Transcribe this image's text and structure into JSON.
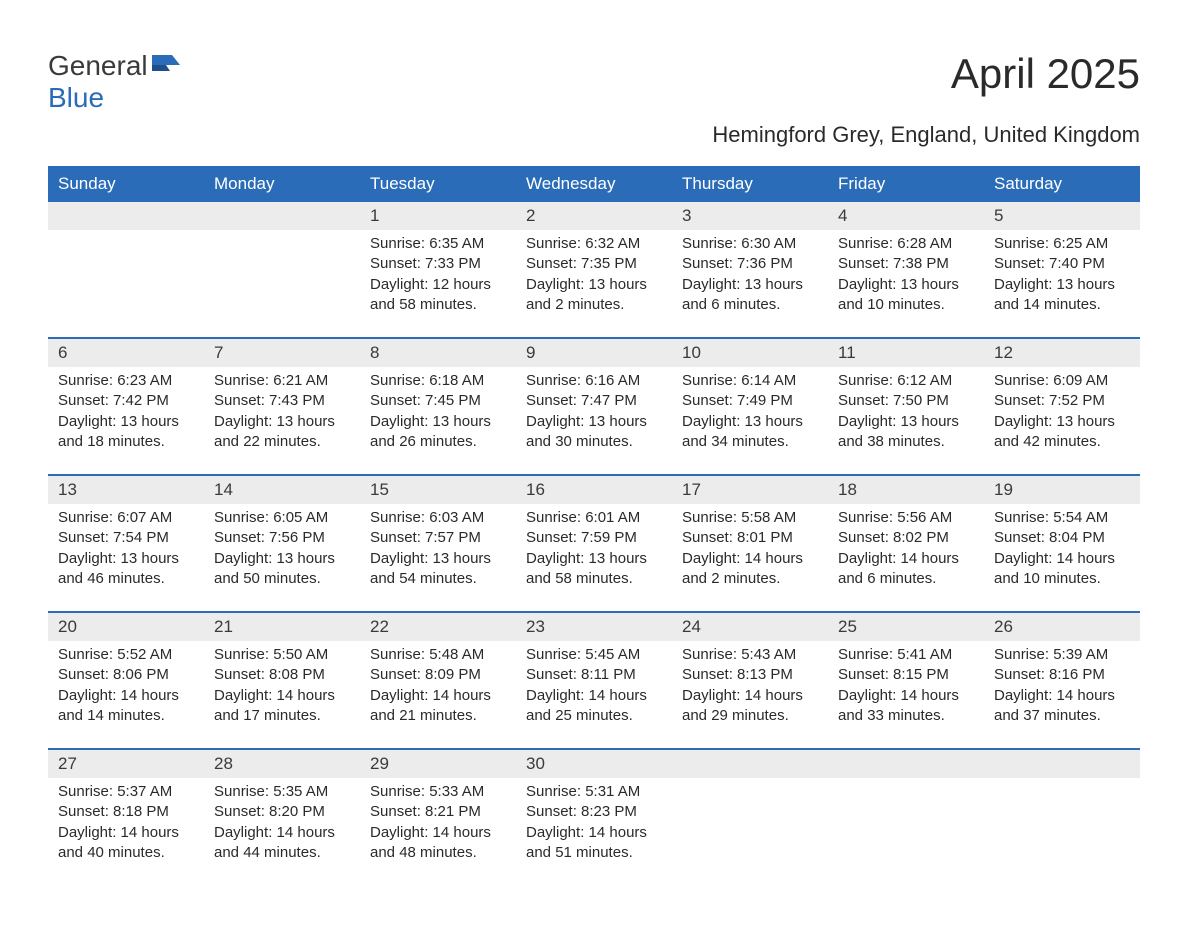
{
  "logo": {
    "text1": "General",
    "text2": "Blue",
    "icon_color": "#2b6cb8",
    "text1_color": "#3a3a3a"
  },
  "title": "April 2025",
  "subtitle": "Hemingford Grey, England, United Kingdom",
  "colors": {
    "header_bg": "#2b6cb8",
    "header_text": "#ffffff",
    "date_row_bg": "#ececec",
    "week_border": "#2b6cb8",
    "body_text": "#2a2a2a"
  },
  "weekdays": [
    "Sunday",
    "Monday",
    "Tuesday",
    "Wednesday",
    "Thursday",
    "Friday",
    "Saturday"
  ],
  "weeks": [
    {
      "dates": [
        "",
        "",
        "1",
        "2",
        "3",
        "4",
        "5"
      ],
      "info": [
        null,
        null,
        {
          "sunrise": "Sunrise: 6:35 AM",
          "sunset": "Sunset: 7:33 PM",
          "daylight1": "Daylight: 12 hours",
          "daylight2": "and 58 minutes."
        },
        {
          "sunrise": "Sunrise: 6:32 AM",
          "sunset": "Sunset: 7:35 PM",
          "daylight1": "Daylight: 13 hours",
          "daylight2": "and 2 minutes."
        },
        {
          "sunrise": "Sunrise: 6:30 AM",
          "sunset": "Sunset: 7:36 PM",
          "daylight1": "Daylight: 13 hours",
          "daylight2": "and 6 minutes."
        },
        {
          "sunrise": "Sunrise: 6:28 AM",
          "sunset": "Sunset: 7:38 PM",
          "daylight1": "Daylight: 13 hours",
          "daylight2": "and 10 minutes."
        },
        {
          "sunrise": "Sunrise: 6:25 AM",
          "sunset": "Sunset: 7:40 PM",
          "daylight1": "Daylight: 13 hours",
          "daylight2": "and 14 minutes."
        }
      ]
    },
    {
      "dates": [
        "6",
        "7",
        "8",
        "9",
        "10",
        "11",
        "12"
      ],
      "info": [
        {
          "sunrise": "Sunrise: 6:23 AM",
          "sunset": "Sunset: 7:42 PM",
          "daylight1": "Daylight: 13 hours",
          "daylight2": "and 18 minutes."
        },
        {
          "sunrise": "Sunrise: 6:21 AM",
          "sunset": "Sunset: 7:43 PM",
          "daylight1": "Daylight: 13 hours",
          "daylight2": "and 22 minutes."
        },
        {
          "sunrise": "Sunrise: 6:18 AM",
          "sunset": "Sunset: 7:45 PM",
          "daylight1": "Daylight: 13 hours",
          "daylight2": "and 26 minutes."
        },
        {
          "sunrise": "Sunrise: 6:16 AM",
          "sunset": "Sunset: 7:47 PM",
          "daylight1": "Daylight: 13 hours",
          "daylight2": "and 30 minutes."
        },
        {
          "sunrise": "Sunrise: 6:14 AM",
          "sunset": "Sunset: 7:49 PM",
          "daylight1": "Daylight: 13 hours",
          "daylight2": "and 34 minutes."
        },
        {
          "sunrise": "Sunrise: 6:12 AM",
          "sunset": "Sunset: 7:50 PM",
          "daylight1": "Daylight: 13 hours",
          "daylight2": "and 38 minutes."
        },
        {
          "sunrise": "Sunrise: 6:09 AM",
          "sunset": "Sunset: 7:52 PM",
          "daylight1": "Daylight: 13 hours",
          "daylight2": "and 42 minutes."
        }
      ]
    },
    {
      "dates": [
        "13",
        "14",
        "15",
        "16",
        "17",
        "18",
        "19"
      ],
      "info": [
        {
          "sunrise": "Sunrise: 6:07 AM",
          "sunset": "Sunset: 7:54 PM",
          "daylight1": "Daylight: 13 hours",
          "daylight2": "and 46 minutes."
        },
        {
          "sunrise": "Sunrise: 6:05 AM",
          "sunset": "Sunset: 7:56 PM",
          "daylight1": "Daylight: 13 hours",
          "daylight2": "and 50 minutes."
        },
        {
          "sunrise": "Sunrise: 6:03 AM",
          "sunset": "Sunset: 7:57 PM",
          "daylight1": "Daylight: 13 hours",
          "daylight2": "and 54 minutes."
        },
        {
          "sunrise": "Sunrise: 6:01 AM",
          "sunset": "Sunset: 7:59 PM",
          "daylight1": "Daylight: 13 hours",
          "daylight2": "and 58 minutes."
        },
        {
          "sunrise": "Sunrise: 5:58 AM",
          "sunset": "Sunset: 8:01 PM",
          "daylight1": "Daylight: 14 hours",
          "daylight2": "and 2 minutes."
        },
        {
          "sunrise": "Sunrise: 5:56 AM",
          "sunset": "Sunset: 8:02 PM",
          "daylight1": "Daylight: 14 hours",
          "daylight2": "and 6 minutes."
        },
        {
          "sunrise": "Sunrise: 5:54 AM",
          "sunset": "Sunset: 8:04 PM",
          "daylight1": "Daylight: 14 hours",
          "daylight2": "and 10 minutes."
        }
      ]
    },
    {
      "dates": [
        "20",
        "21",
        "22",
        "23",
        "24",
        "25",
        "26"
      ],
      "info": [
        {
          "sunrise": "Sunrise: 5:52 AM",
          "sunset": "Sunset: 8:06 PM",
          "daylight1": "Daylight: 14 hours",
          "daylight2": "and 14 minutes."
        },
        {
          "sunrise": "Sunrise: 5:50 AM",
          "sunset": "Sunset: 8:08 PM",
          "daylight1": "Daylight: 14 hours",
          "daylight2": "and 17 minutes."
        },
        {
          "sunrise": "Sunrise: 5:48 AM",
          "sunset": "Sunset: 8:09 PM",
          "daylight1": "Daylight: 14 hours",
          "daylight2": "and 21 minutes."
        },
        {
          "sunrise": "Sunrise: 5:45 AM",
          "sunset": "Sunset: 8:11 PM",
          "daylight1": "Daylight: 14 hours",
          "daylight2": "and 25 minutes."
        },
        {
          "sunrise": "Sunrise: 5:43 AM",
          "sunset": "Sunset: 8:13 PM",
          "daylight1": "Daylight: 14 hours",
          "daylight2": "and 29 minutes."
        },
        {
          "sunrise": "Sunrise: 5:41 AM",
          "sunset": "Sunset: 8:15 PM",
          "daylight1": "Daylight: 14 hours",
          "daylight2": "and 33 minutes."
        },
        {
          "sunrise": "Sunrise: 5:39 AM",
          "sunset": "Sunset: 8:16 PM",
          "daylight1": "Daylight: 14 hours",
          "daylight2": "and 37 minutes."
        }
      ]
    },
    {
      "dates": [
        "27",
        "28",
        "29",
        "30",
        "",
        "",
        ""
      ],
      "info": [
        {
          "sunrise": "Sunrise: 5:37 AM",
          "sunset": "Sunset: 8:18 PM",
          "daylight1": "Daylight: 14 hours",
          "daylight2": "and 40 minutes."
        },
        {
          "sunrise": "Sunrise: 5:35 AM",
          "sunset": "Sunset: 8:20 PM",
          "daylight1": "Daylight: 14 hours",
          "daylight2": "and 44 minutes."
        },
        {
          "sunrise": "Sunrise: 5:33 AM",
          "sunset": "Sunset: 8:21 PM",
          "daylight1": "Daylight: 14 hours",
          "daylight2": "and 48 minutes."
        },
        {
          "sunrise": "Sunrise: 5:31 AM",
          "sunset": "Sunset: 8:23 PM",
          "daylight1": "Daylight: 14 hours",
          "daylight2": "and 51 minutes."
        },
        null,
        null,
        null
      ]
    }
  ]
}
